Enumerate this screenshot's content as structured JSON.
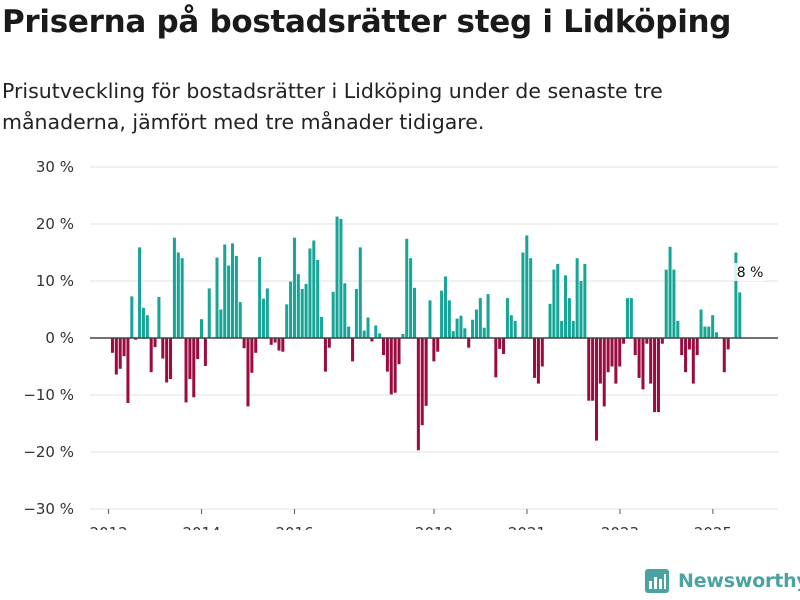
{
  "title": "Priserna på bostadsrätter steg i Lidköping",
  "subtitle": "Prisutveckling för bostadsrätter i Lidköping under de senaste tre månaderna, jämfört med tre månader tidigare.",
  "brand": {
    "name": "Newsworthy"
  },
  "colors": {
    "positive": "#16a596",
    "negative": "#9b0b40",
    "grid": "#e2e2e2",
    "zero": "#444444"
  },
  "chart_data": {
    "type": "bar",
    "title": "Priserna på bostadsrätter steg i Lidköping",
    "ylabel": "",
    "xlabel": "",
    "ylim": [
      -30,
      30
    ],
    "y_ticks": [
      30,
      20,
      10,
      0,
      -10,
      -20,
      -30
    ],
    "y_tick_labels": [
      "30 %",
      "20 %",
      "10 %",
      "0 %",
      "−10 %",
      "−20 %",
      "−30 %"
    ],
    "x_ticks": [
      2012,
      2014,
      2016,
      2019,
      2021,
      2023,
      2025
    ],
    "x_tick_labels": [
      "2012",
      "2014",
      "2016",
      "2019",
      "2021",
      "2023",
      "2025"
    ],
    "x_range": [
      2011.6,
      2026.4
    ],
    "start": 2011.5,
    "step": 0.0833,
    "values": [
      null,
      null,
      null,
      null,
      null,
      null,
      null,
      -2.6,
      -6.4,
      -5.4,
      -3.2,
      -11.4,
      7.3,
      -0.3,
      15.9,
      5.3,
      4.0,
      -6.0,
      -1.6,
      7.2,
      -3.6,
      -7.8,
      -7.2,
      17.6,
      15.0,
      14.0,
      -11.3,
      -7.2,
      -10.4,
      -3.7,
      3.3,
      -4.9,
      8.7,
      0.0,
      14.1,
      5.0,
      16.4,
      12.7,
      16.6,
      14.4,
      6.3,
      -1.8,
      -12.0,
      -6.1,
      -2.6,
      14.2,
      6.9,
      8.7,
      -1.2,
      -0.8,
      -2.2,
      -2.4,
      5.9,
      9.9,
      17.6,
      11.2,
      8.6,
      9.5,
      15.7,
      17.1,
      13.7,
      3.7,
      -5.9,
      -1.7,
      8.1,
      21.3,
      20.9,
      9.6,
      2.0,
      -4.1,
      8.6,
      15.9,
      1.3,
      3.6,
      -0.6,
      2.2,
      0.8,
      -3.0,
      -5.9,
      -9.9,
      -9.6,
      -4.6,
      0.7,
      17.4,
      14.0,
      8.8,
      -19.7,
      -15.3,
      -11.9,
      6.6,
      -4.1,
      -2.4,
      8.3,
      10.8,
      6.6,
      1.2,
      3.4,
      3.9,
      1.7,
      -1.7,
      3.2,
      5.0,
      7.0,
      1.8,
      7.7,
      0.0,
      -6.9,
      -1.9,
      -2.8,
      7.0,
      4.0,
      3.0,
      0.0,
      15.0,
      18.0,
      14.0,
      -7.0,
      -8.0,
      -5.0,
      0.0,
      6.0,
      12.0,
      13.0,
      3.0,
      11.0,
      7.0,
      3.0,
      14.0,
      10.0,
      13.0,
      -11.0,
      -11.0,
      -18.0,
      -8.0,
      -12.0,
      -6.0,
      -5.0,
      -8.0,
      -5.0,
      -1.0,
      7.0,
      7.0,
      -3.0,
      -7.0,
      -9.0,
      -1.0,
      -8.0,
      -13.0,
      -13.0,
      -1.0,
      12.0,
      16.0,
      12.0,
      3.0,
      -3.0,
      -6.0,
      -2.0,
      -8.0,
      -3.0,
      5.0,
      2.0,
      2.0,
      4.0,
      1.0,
      0.0,
      -6.0,
      -2.0,
      0.0,
      15.0,
      8.0
    ],
    "annotation": {
      "label": "8 %",
      "value": 8,
      "x": 2025.8
    }
  }
}
